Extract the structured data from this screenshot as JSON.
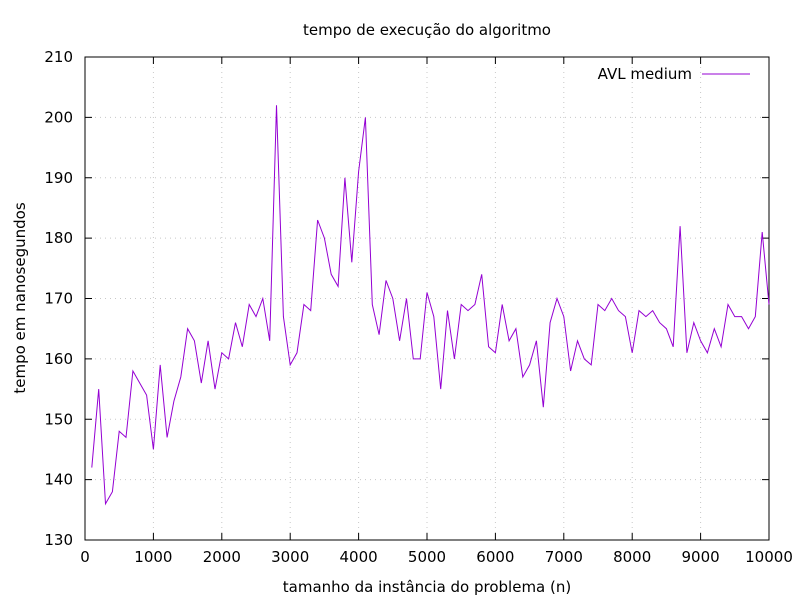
{
  "chart_data": {
    "type": "line",
    "title": "tempo de execução do algoritmo",
    "xlabel": "tamanho da instância do problema (n)",
    "ylabel": "tempo em nanosegundos",
    "xlim": [
      0,
      10000
    ],
    "ylim": [
      130,
      210
    ],
    "xticks": [
      0,
      1000,
      2000,
      3000,
      4000,
      5000,
      6000,
      7000,
      8000,
      9000,
      10000
    ],
    "yticks": [
      130,
      140,
      150,
      160,
      170,
      180,
      190,
      200,
      210
    ],
    "grid": true,
    "legend_position": "top-right",
    "series": [
      {
        "name": "AVL medium",
        "color": "#9400d3",
        "x": [
          100,
          200,
          300,
          400,
          500,
          600,
          700,
          800,
          900,
          1000,
          1100,
          1200,
          1300,
          1400,
          1500,
          1600,
          1700,
          1800,
          1900,
          2000,
          2100,
          2200,
          2300,
          2400,
          2500,
          2600,
          2700,
          2800,
          2900,
          3000,
          3100,
          3200,
          3300,
          3400,
          3500,
          3600,
          3700,
          3800,
          3900,
          4000,
          4100,
          4200,
          4300,
          4400,
          4500,
          4600,
          4700,
          4800,
          4900,
          5000,
          5100,
          5200,
          5300,
          5400,
          5500,
          5600,
          5700,
          5800,
          5900,
          6000,
          6100,
          6200,
          6300,
          6400,
          6500,
          6600,
          6700,
          6800,
          6900,
          7000,
          7100,
          7200,
          7300,
          7400,
          7500,
          7600,
          7700,
          7800,
          7900,
          8000,
          8100,
          8200,
          8300,
          8400,
          8500,
          8600,
          8700,
          8800,
          8900,
          9000,
          9100,
          9200,
          9300,
          9400,
          9500,
          9600,
          9700,
          9800,
          9900,
          10000
        ],
        "y": [
          142,
          155,
          136,
          138,
          148,
          147,
          158,
          156,
          154,
          145,
          159,
          147,
          153,
          157,
          165,
          163,
          156,
          163,
          155,
          161,
          160,
          166,
          162,
          169,
          167,
          170,
          163,
          202,
          167,
          159,
          161,
          169,
          168,
          183,
          180,
          174,
          172,
          190,
          176,
          191,
          200,
          169,
          164,
          173,
          170,
          163,
          170,
          160,
          160,
          171,
          167,
          155,
          168,
          160,
          169,
          168,
          169,
          174,
          162,
          161,
          169,
          163,
          165,
          157,
          159,
          163,
          152,
          166,
          170,
          167,
          158,
          163,
          160,
          159,
          169,
          168,
          170,
          168,
          167,
          161,
          168,
          167,
          168,
          166,
          165,
          162,
          182,
          161,
          166,
          163,
          161,
          165,
          162,
          169,
          167,
          167,
          165,
          167,
          181,
          169
        ]
      }
    ]
  }
}
